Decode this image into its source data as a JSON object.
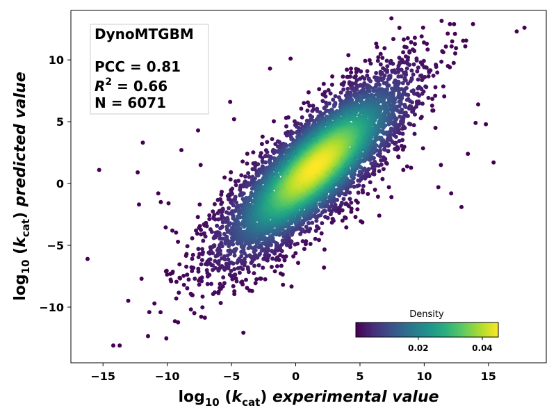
{
  "chart_data": {
    "type": "scatter",
    "title": "",
    "xlabel": {
      "prefix": "log",
      "sub": "10",
      "var": "k",
      "varsub": "cat",
      "suffix": "experimental value"
    },
    "ylabel": {
      "prefix": "log",
      "sub": "10",
      "var": "k",
      "varsub": "cat",
      "suffix": "predicted value"
    },
    "xlim": [
      -17.5,
      19.5
    ],
    "ylim": [
      -14.5,
      14
    ],
    "xticks": [
      -15,
      -10,
      -5,
      0,
      5,
      10,
      15
    ],
    "yticks": [
      -10,
      -5,
      0,
      5,
      10
    ],
    "xtick_labels": [
      "−15",
      "−10",
      "−5",
      "0",
      "5",
      "10",
      "15"
    ],
    "ytick_labels": [
      "−10",
      "−5",
      "0",
      "5",
      "10"
    ],
    "grid": false,
    "annotation": {
      "model": "DynoMTGBM",
      "pcc_text": "PCC = 0.81",
      "r2_symbol": "R",
      "r2_exp": "2",
      "r2_value": " = 0.66",
      "n_text": "N = 6071"
    },
    "stats": {
      "pcc": 0.81,
      "r2": 0.66,
      "n": 6071
    },
    "colormap": "viridis",
    "colorbar": {
      "title": "Density",
      "range": [
        0.0005,
        0.045
      ],
      "ticks": [
        0.02,
        0.04
      ],
      "tick_labels": [
        "0.02",
        "0.04"
      ],
      "placement": "lower-right"
    },
    "points": [
      [
        -16.2,
        -6.1
      ],
      [
        -15.3,
        1.1
      ],
      [
        -14.2,
        -13.1
      ],
      [
        -13.7,
        -13.1
      ],
      [
        -12.3,
        0.9
      ],
      [
        -12.2,
        -1.7
      ],
      [
        -12.0,
        -7.7
      ],
      [
        -11.9,
        3.3
      ],
      [
        -11.4,
        -10.4
      ],
      [
        -11.0,
        -9.7
      ],
      [
        -10.7,
        -0.8
      ],
      [
        -10.5,
        -1.5
      ],
      [
        -10.1,
        -7.1
      ],
      [
        -9.9,
        -1.6
      ],
      [
        -9.6,
        -3.8
      ],
      [
        -9.3,
        -9.3
      ],
      [
        -8.9,
        2.7
      ],
      [
        -8.5,
        -5.7
      ],
      [
        -8.1,
        -9.0
      ],
      [
        -7.6,
        4.3
      ],
      [
        -7.4,
        1.5
      ],
      [
        -7.3,
        -7.6
      ],
      [
        -4.8,
        5.2
      ],
      [
        -2.0,
        9.3
      ],
      [
        0.0,
        -3.0
      ],
      [
        2.2,
        -6.8
      ],
      [
        6.5,
        -2.6
      ],
      [
        12.0,
        12.9
      ],
      [
        12.4,
        12.1
      ],
      [
        13.8,
        12.9
      ],
      [
        14.2,
        6.4
      ],
      [
        14.8,
        4.8
      ],
      [
        15.4,
        1.7
      ],
      [
        17.2,
        12.3
      ],
      [
        17.8,
        12.6
      ],
      [
        10.2,
        11.3
      ],
      [
        11.4,
        10.7
      ],
      [
        13.2,
        11.1
      ],
      [
        12.9,
        -1.9
      ],
      [
        11.3,
        1.5
      ],
      [
        11.1,
        -0.3
      ],
      [
        12.1,
        -0.8
      ],
      [
        13.4,
        2.4
      ],
      [
        14.0,
        4.9
      ],
      [
        9.8,
        11.9
      ],
      [
        8.1,
        9.8
      ],
      [
        -3.4,
        -8.7
      ],
      [
        -4.6,
        -7.9
      ],
      [
        -5.1,
        6.6
      ],
      [
        -0.4,
        10.1
      ],
      [
        4.3,
        9.3
      ],
      [
        9.6,
        7.1
      ],
      [
        -6.3,
        -8.8
      ],
      [
        -9.7,
        -7.9
      ],
      [
        -8.7,
        -8.2
      ]
    ]
  }
}
